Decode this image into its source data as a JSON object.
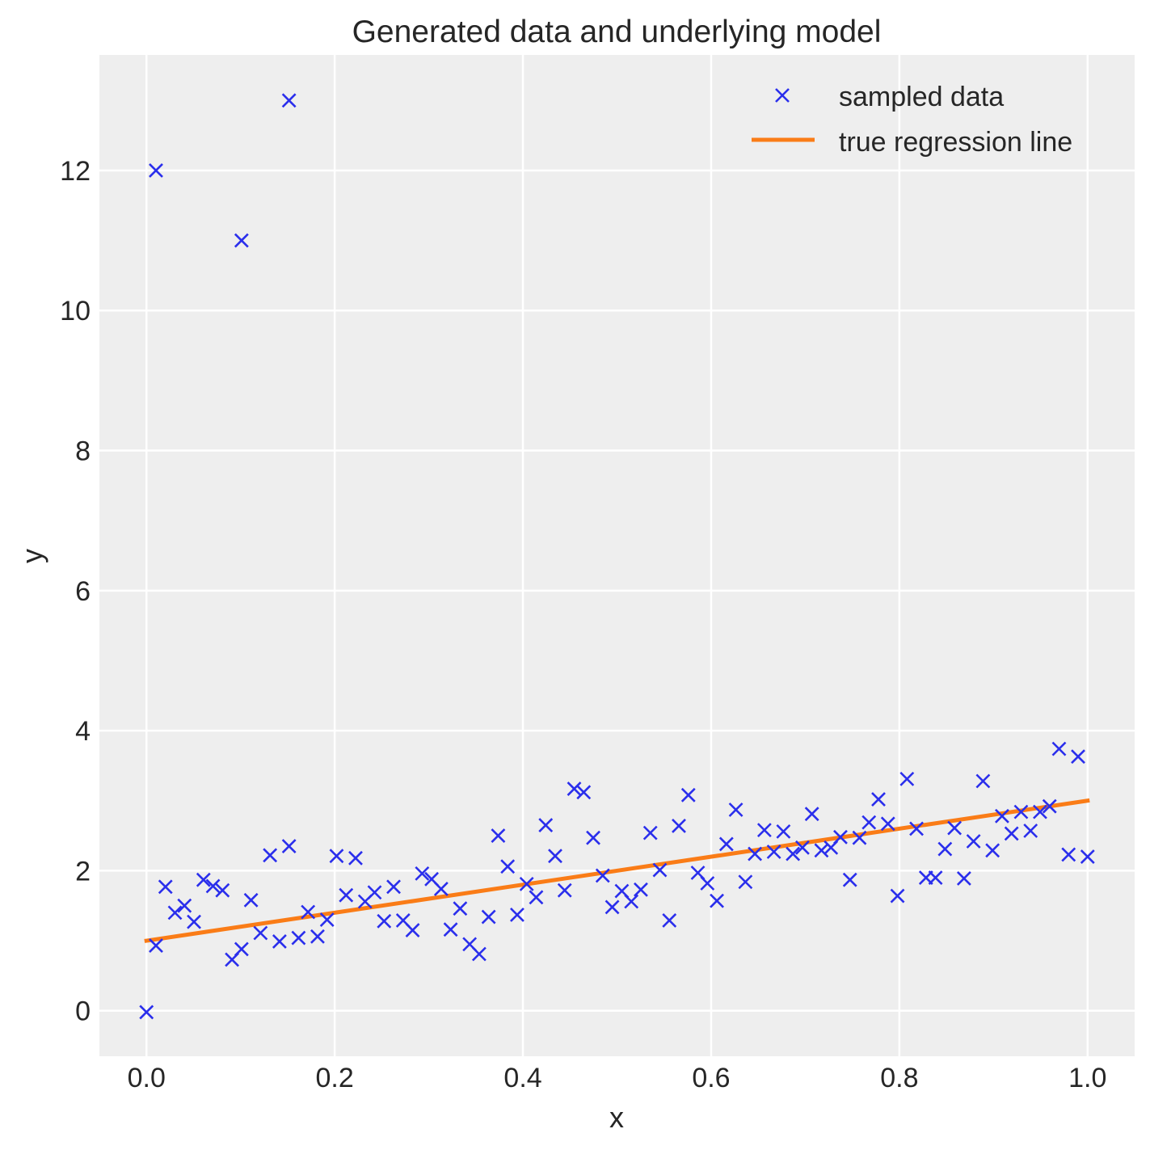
{
  "chart_data": {
    "type": "scatter",
    "title": "Generated data and underlying model",
    "xlabel": "x",
    "ylabel": "y",
    "xlim": [
      -0.05,
      1.05
    ],
    "ylim": [
      -0.65,
      13.65
    ],
    "xticks": [
      0.0,
      0.2,
      0.4,
      0.6,
      0.8,
      1.0
    ],
    "xtick_labels": [
      "0.0",
      "0.2",
      "0.4",
      "0.6",
      "0.8",
      "1.0"
    ],
    "yticks": [
      0,
      2,
      4,
      6,
      8,
      10,
      12
    ],
    "ytick_labels": [
      "0",
      "2",
      "4",
      "6",
      "8",
      "10",
      "12"
    ],
    "grid": true,
    "legend_position": "top-right",
    "colors": {
      "background": "#eeeeee",
      "grid": "#ffffff",
      "scatter": "#2a2eec",
      "line": "#fa7c17",
      "text": "#262626"
    },
    "series": [
      {
        "name": "sampled data",
        "kind": "scatter",
        "marker": "x",
        "x": [
          0.0,
          0.0101,
          0.0202,
          0.0303,
          0.0404,
          0.0505,
          0.0606,
          0.0707,
          0.0808,
          0.0909,
          0.101,
          0.1111,
          0.1212,
          0.1313,
          0.1414,
          0.1515,
          0.1616,
          0.1717,
          0.1818,
          0.1919,
          0.202,
          0.2121,
          0.2222,
          0.2323,
          0.2424,
          0.2525,
          0.2626,
          0.2727,
          0.2828,
          0.2929,
          0.303,
          0.3131,
          0.3232,
          0.3333,
          0.3434,
          0.3535,
          0.3636,
          0.3737,
          0.3838,
          0.3939,
          0.404,
          0.4141,
          0.4242,
          0.4343,
          0.4444,
          0.4545,
          0.4646,
          0.4747,
          0.4848,
          0.4949,
          0.5051,
          0.5152,
          0.5253,
          0.5354,
          0.5455,
          0.5556,
          0.5657,
          0.5758,
          0.5859,
          0.596,
          0.6061,
          0.6162,
          0.6263,
          0.6364,
          0.6465,
          0.6566,
          0.6667,
          0.6768,
          0.6869,
          0.697,
          0.7071,
          0.7172,
          0.7273,
          0.7374,
          0.7475,
          0.7576,
          0.7677,
          0.7778,
          0.7879,
          0.798,
          0.8081,
          0.8182,
          0.8283,
          0.8384,
          0.8485,
          0.8586,
          0.8687,
          0.8788,
          0.8889,
          0.899,
          0.9091,
          0.9192,
          0.9293,
          0.9394,
          0.9495,
          0.9596,
          0.9697,
          0.9798,
          0.9899,
          1.0,
          0.0101,
          0.101,
          0.1515
        ],
        "y": [
          -0.02,
          0.93,
          1.77,
          1.4,
          1.5,
          1.27,
          1.87,
          1.78,
          1.72,
          0.73,
          0.88,
          1.58,
          1.11,
          2.22,
          0.99,
          2.35,
          1.04,
          1.41,
          1.06,
          1.3,
          2.21,
          1.65,
          2.18,
          1.56,
          1.69,
          1.28,
          1.77,
          1.29,
          1.15,
          1.96,
          1.88,
          1.74,
          1.16,
          1.46,
          0.95,
          0.81,
          1.34,
          2.5,
          2.06,
          1.37,
          1.81,
          1.62,
          2.65,
          2.21,
          1.72,
          3.17,
          3.12,
          2.47,
          1.93,
          1.48,
          1.71,
          1.56,
          1.73,
          2.54,
          2.01,
          1.29,
          2.64,
          3.08,
          1.97,
          1.82,
          1.57,
          2.38,
          2.87,
          1.84,
          2.24,
          2.58,
          2.27,
          2.56,
          2.24,
          2.33,
          2.81,
          2.29,
          2.33,
          2.48,
          1.87,
          2.47,
          2.69,
          3.02,
          2.67,
          1.64,
          3.31,
          2.6,
          1.9,
          1.9,
          2.31,
          2.61,
          1.89,
          2.42,
          3.28,
          2.29,
          2.78,
          2.53,
          2.84,
          2.57,
          2.84,
          2.92,
          3.74,
          2.23,
          3.63,
          2.2,
          12.0,
          11.0,
          13.0
        ]
      },
      {
        "name": "true regression line",
        "kind": "line",
        "x": [
          0.0,
          1.0
        ],
        "y": [
          1.0,
          3.0
        ]
      }
    ]
  }
}
